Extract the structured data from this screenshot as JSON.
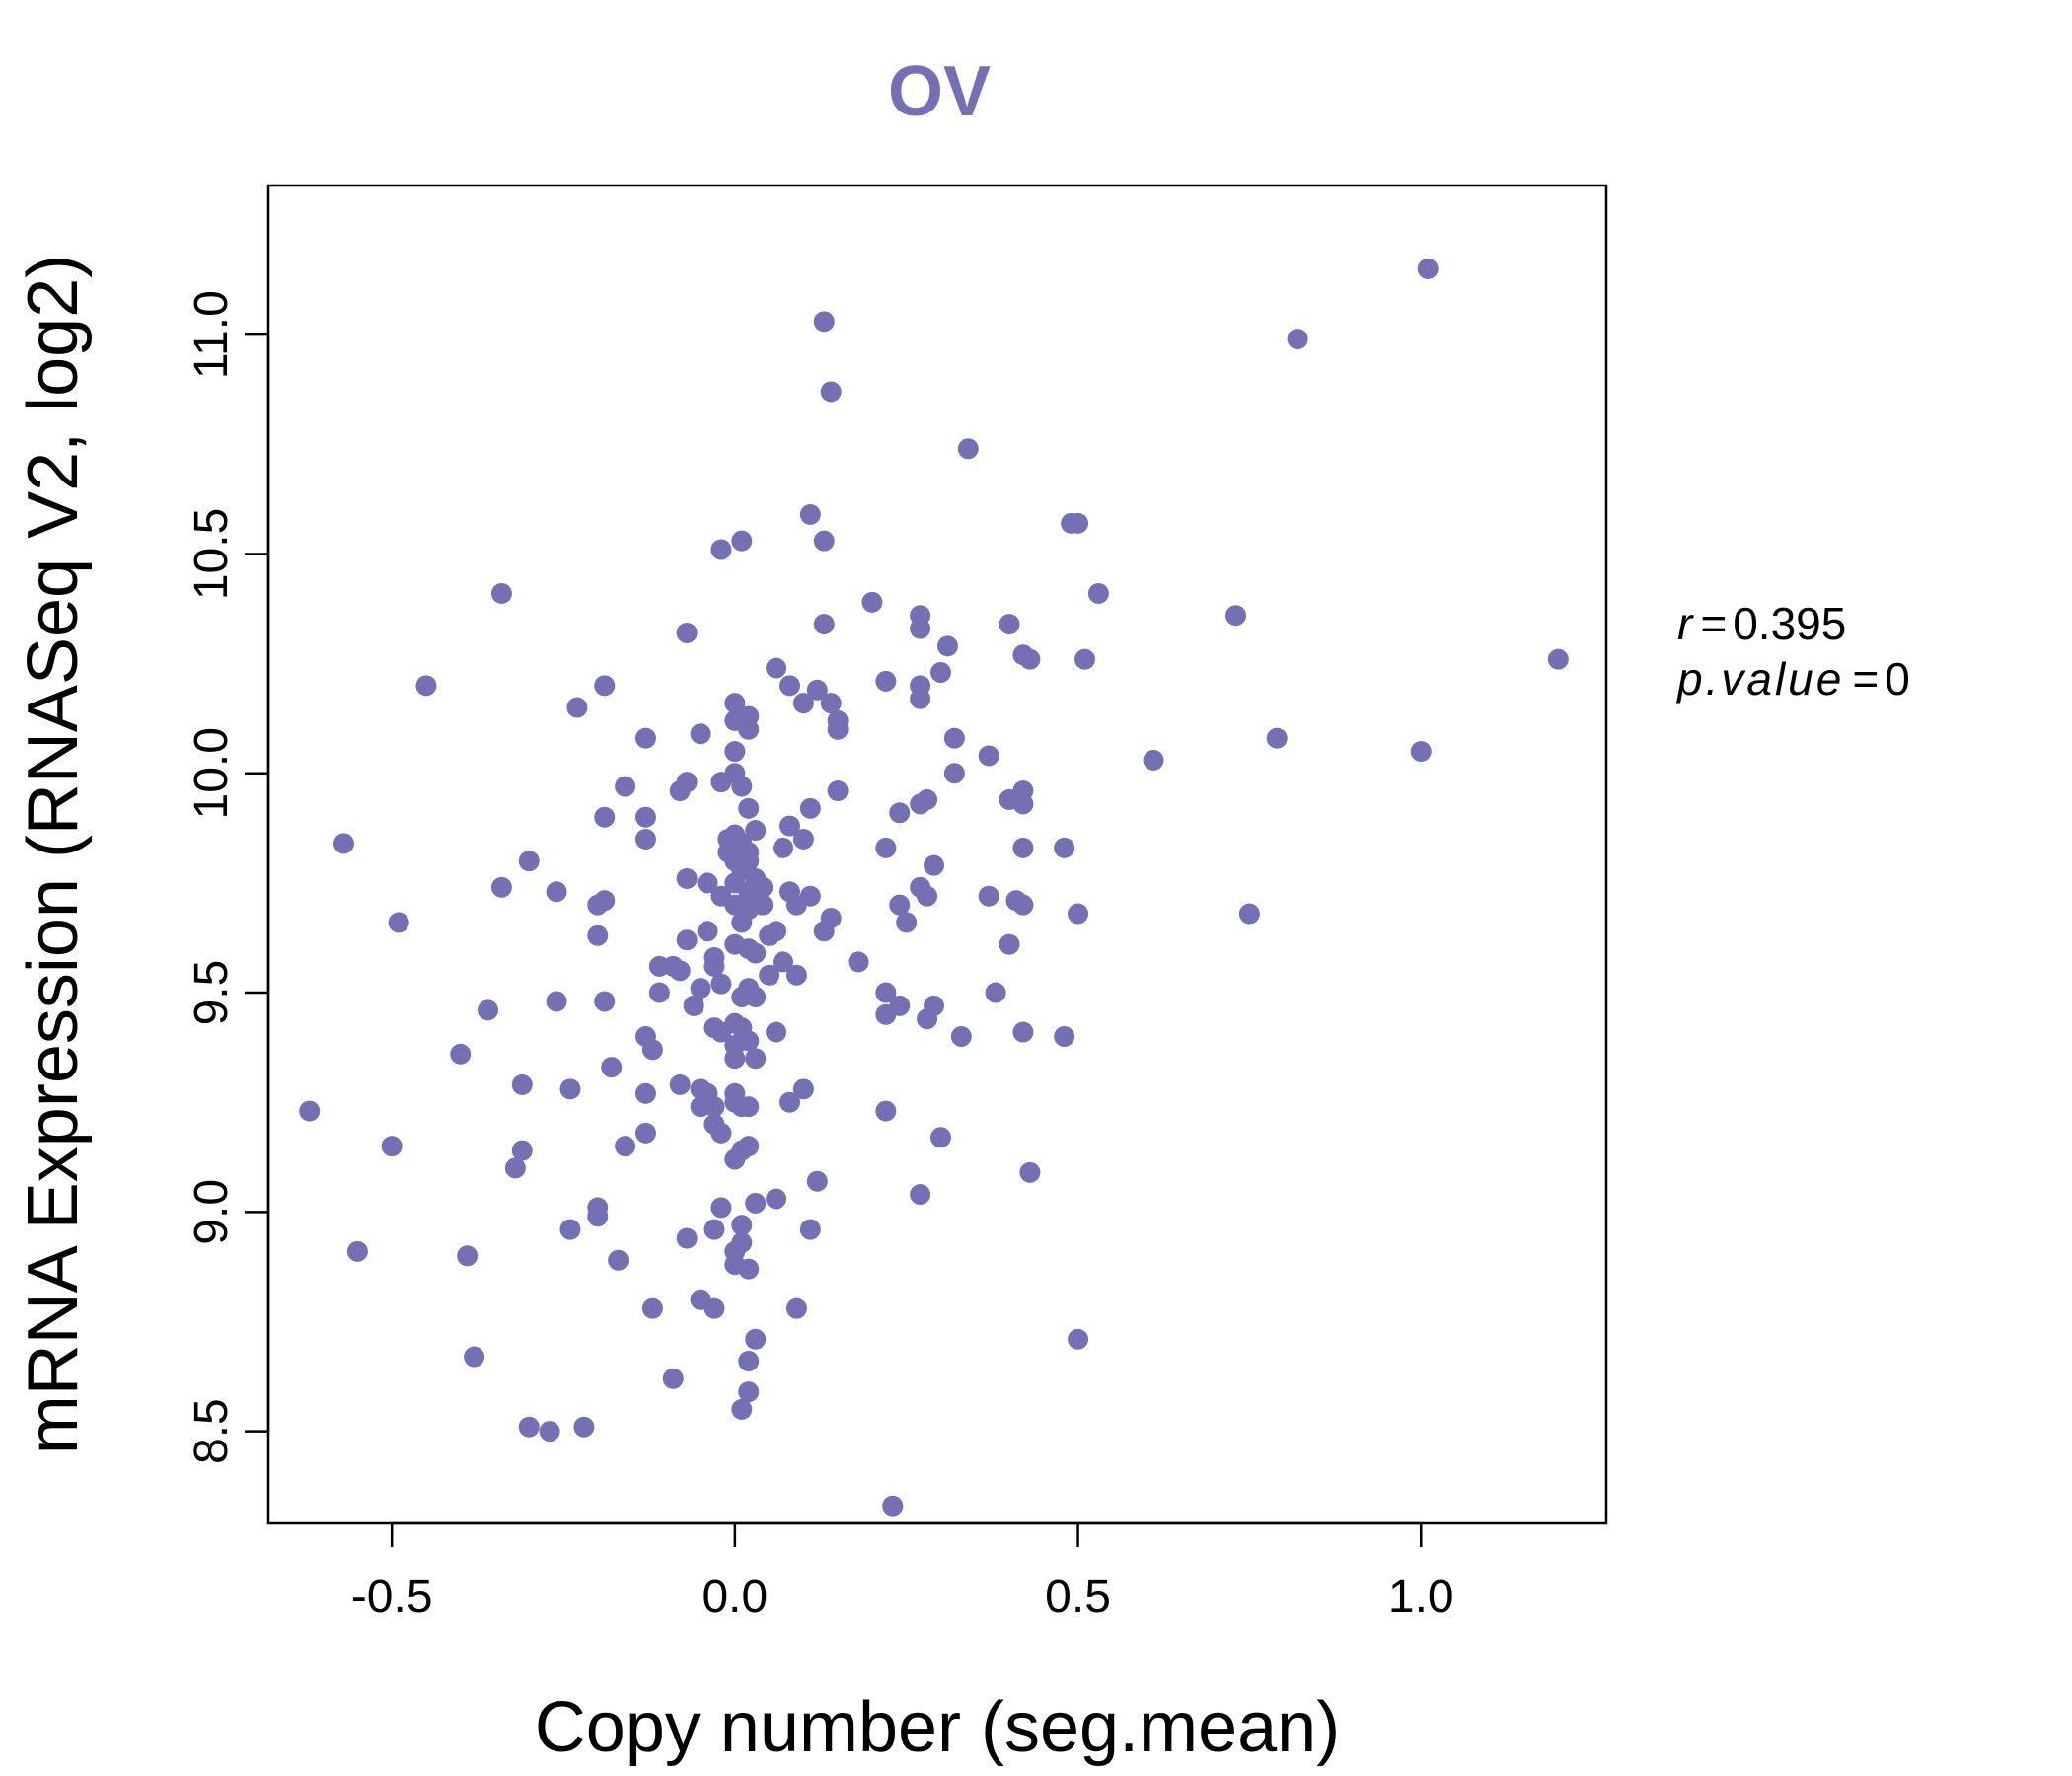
{
  "chart_data": {
    "type": "scatter",
    "title": "OV",
    "xlabel": "Copy number (seg.mean)",
    "ylabel": "mRNA Expression (RNASeq V2, log2)",
    "xlim": [
      -0.68,
      1.27
    ],
    "ylim": [
      8.29,
      11.34
    ],
    "xticks": [
      -0.5,
      0.0,
      0.5,
      1.0
    ],
    "xtick_labels": [
      "-0.5",
      "0.0",
      "0.5",
      "1.0"
    ],
    "yticks": [
      8.5,
      9.0,
      9.5,
      10.0,
      10.5,
      11.0
    ],
    "ytick_labels": [
      "8.5",
      "9.0",
      "9.5",
      "10.0",
      "10.5",
      "11.0"
    ],
    "grid": false,
    "legend": false,
    "point_color": "#7570b3",
    "stats": {
      "r_label": "r",
      "r_value": "0.395",
      "p_label": "p.value",
      "p_value": "0"
    },
    "points": [
      [
        1.01,
        11.15
      ],
      [
        0.82,
        10.99
      ],
      [
        0.13,
        11.03
      ],
      [
        0.14,
        10.87
      ],
      [
        0.34,
        10.74
      ],
      [
        0.11,
        10.59
      ],
      [
        0.13,
        10.53
      ],
      [
        0.01,
        10.53
      ],
      [
        -0.02,
        10.51
      ],
      [
        0.49,
        10.57
      ],
      [
        0.5,
        10.57
      ],
      [
        0.53,
        10.41
      ],
      [
        0.2,
        10.39
      ],
      [
        -0.34,
        10.41
      ],
      [
        0.13,
        10.34
      ],
      [
        0.27,
        10.36
      ],
      [
        0.27,
        10.33
      ],
      [
        0.4,
        10.34
      ],
      [
        0.73,
        10.36
      ],
      [
        -0.07,
        10.32
      ],
      [
        0.31,
        10.29
      ],
      [
        0.42,
        10.27
      ],
      [
        0.43,
        10.26
      ],
      [
        0.51,
        10.26
      ],
      [
        1.2,
        10.26
      ],
      [
        0.06,
        10.24
      ],
      [
        0.3,
        10.23
      ],
      [
        0.08,
        10.2
      ],
      [
        0.12,
        10.19
      ],
      [
        0.22,
        10.21
      ],
      [
        0.27,
        10.2
      ],
      [
        0.27,
        10.17
      ],
      [
        -0.45,
        10.2
      ],
      [
        -0.19,
        10.2
      ],
      [
        -0.23,
        10.15
      ],
      [
        0.1,
        10.16
      ],
      [
        0.14,
        10.16
      ],
      [
        0.0,
        10.16
      ],
      [
        0.02,
        10.13
      ],
      [
        0.0,
        10.12
      ],
      [
        0.15,
        10.12
      ],
      [
        0.15,
        10.1
      ],
      [
        0.02,
        10.1
      ],
      [
        -0.05,
        10.09
      ],
      [
        -0.13,
        10.08
      ],
      [
        0.32,
        10.08
      ],
      [
        0.79,
        10.08
      ],
      [
        1.0,
        10.05
      ],
      [
        0.61,
        10.03
      ],
      [
        0.37,
        10.04
      ],
      [
        0.0,
        10.05
      ],
      [
        0.32,
        10.0
      ],
      [
        0.0,
        10.0
      ],
      [
        -0.07,
        9.98
      ],
      [
        -0.08,
        9.96
      ],
      [
        -0.16,
        9.97
      ],
      [
        0.15,
        9.96
      ],
      [
        -0.02,
        9.98
      ],
      [
        0.01,
        9.97
      ],
      [
        0.42,
        9.96
      ],
      [
        0.4,
        9.94
      ],
      [
        0.42,
        9.93
      ],
      [
        0.28,
        9.94
      ],
      [
        0.27,
        9.93
      ],
      [
        0.24,
        9.91
      ],
      [
        0.11,
        9.92
      ],
      [
        0.02,
        9.92
      ],
      [
        -0.13,
        9.9
      ],
      [
        -0.19,
        9.9
      ],
      [
        0.08,
        9.88
      ],
      [
        0.03,
        9.87
      ],
      [
        0.0,
        9.86
      ],
      [
        -0.01,
        9.85
      ],
      [
        0.01,
        9.84
      ],
      [
        0.1,
        9.85
      ],
      [
        -0.13,
        9.85
      ],
      [
        -0.57,
        9.84
      ],
      [
        0.22,
        9.83
      ],
      [
        0.42,
        9.83
      ],
      [
        0.48,
        9.83
      ],
      [
        0.07,
        9.83
      ],
      [
        0.02,
        9.82
      ],
      [
        -0.01,
        9.82
      ],
      [
        0.0,
        9.8
      ],
      [
        0.02,
        9.8
      ],
      [
        0.29,
        9.79
      ],
      [
        -0.3,
        9.8
      ],
      [
        -0.07,
        9.76
      ],
      [
        0.01,
        9.78
      ],
      [
        0.03,
        9.76
      ],
      [
        0.0,
        9.75
      ],
      [
        -0.04,
        9.75
      ],
      [
        0.27,
        9.74
      ],
      [
        -0.34,
        9.74
      ],
      [
        0.02,
        9.73
      ],
      [
        0.04,
        9.74
      ],
      [
        0.08,
        9.73
      ],
      [
        -0.26,
        9.73
      ],
      [
        0.28,
        9.72
      ],
      [
        0.11,
        9.72
      ],
      [
        0.37,
        9.72
      ],
      [
        0.03,
        9.72
      ],
      [
        -0.02,
        9.72
      ],
      [
        0.24,
        9.7
      ],
      [
        0.41,
        9.71
      ],
      [
        0.42,
        9.7
      ],
      [
        -0.2,
        9.7
      ],
      [
        -0.19,
        9.71
      ],
      [
        0.0,
        9.7
      ],
      [
        0.04,
        9.7
      ],
      [
        0.09,
        9.7
      ],
      [
        0.02,
        9.69
      ],
      [
        0.5,
        9.68
      ],
      [
        0.75,
        9.68
      ],
      [
        0.14,
        9.67
      ],
      [
        0.25,
        9.66
      ],
      [
        0.01,
        9.66
      ],
      [
        -0.49,
        9.66
      ],
      [
        0.06,
        9.64
      ],
      [
        -0.04,
        9.64
      ],
      [
        0.13,
        9.64
      ],
      [
        -0.2,
        9.63
      ],
      [
        0.05,
        9.63
      ],
      [
        -0.07,
        9.62
      ],
      [
        0.0,
        9.61
      ],
      [
        0.4,
        9.61
      ],
      [
        0.02,
        9.6
      ],
      [
        0.03,
        9.59
      ],
      [
        -0.03,
        9.58
      ],
      [
        0.07,
        9.57
      ],
      [
        0.18,
        9.57
      ],
      [
        -0.03,
        9.56
      ],
      [
        -0.11,
        9.56
      ],
      [
        -0.09,
        9.56
      ],
      [
        -0.08,
        9.55
      ],
      [
        0.09,
        9.54
      ],
      [
        0.05,
        9.54
      ],
      [
        -0.02,
        9.52
      ],
      [
        0.02,
        9.51
      ],
      [
        -0.05,
        9.51
      ],
      [
        -0.11,
        9.5
      ],
      [
        0.38,
        9.5
      ],
      [
        0.22,
        9.5
      ],
      [
        0.03,
        9.49
      ],
      [
        0.01,
        9.49
      ],
      [
        -0.19,
        9.48
      ],
      [
        -0.26,
        9.48
      ],
      [
        0.24,
        9.47
      ],
      [
        0.29,
        9.47
      ],
      [
        -0.06,
        9.47
      ],
      [
        -0.36,
        9.46
      ],
      [
        0.22,
        9.45
      ],
      [
        0.28,
        9.44
      ],
      [
        0.0,
        9.43
      ],
      [
        -0.03,
        9.42
      ],
      [
        0.01,
        9.42
      ],
      [
        -0.02,
        9.41
      ],
      [
        0.06,
        9.41
      ],
      [
        0.33,
        9.4
      ],
      [
        0.42,
        9.41
      ],
      [
        0.48,
        9.4
      ],
      [
        -0.13,
        9.4
      ],
      [
        0.02,
        9.39
      ],
      [
        0.0,
        9.38
      ],
      [
        -0.12,
        9.37
      ],
      [
        -0.4,
        9.36
      ],
      [
        0.03,
        9.35
      ],
      [
        0.0,
        9.35
      ],
      [
        -0.18,
        9.33
      ],
      [
        -0.31,
        9.29
      ],
      [
        -0.08,
        9.29
      ],
      [
        -0.05,
        9.28
      ],
      [
        0.1,
        9.28
      ],
      [
        -0.24,
        9.28
      ],
      [
        0.0,
        9.27
      ],
      [
        -0.04,
        9.27
      ],
      [
        -0.13,
        9.27
      ],
      [
        0.08,
        9.25
      ],
      [
        0.0,
        9.25
      ],
      [
        0.02,
        9.24
      ],
      [
        -0.03,
        9.24
      ],
      [
        -0.05,
        9.24
      ],
      [
        0.01,
        9.24
      ],
      [
        -0.62,
        9.23
      ],
      [
        0.22,
        9.23
      ],
      [
        -0.03,
        9.2
      ],
      [
        -0.02,
        9.18
      ],
      [
        0.3,
        9.17
      ],
      [
        -0.13,
        9.18
      ],
      [
        0.02,
        9.15
      ],
      [
        0.01,
        9.14
      ],
      [
        -0.16,
        9.15
      ],
      [
        -0.31,
        9.14
      ],
      [
        -0.5,
        9.15
      ],
      [
        0.0,
        9.12
      ],
      [
        -0.32,
        9.1
      ],
      [
        0.43,
        9.09
      ],
      [
        0.12,
        9.07
      ],
      [
        0.27,
        9.04
      ],
      [
        0.06,
        9.03
      ],
      [
        0.03,
        9.02
      ],
      [
        -0.2,
        9.01
      ],
      [
        -0.02,
        9.01
      ],
      [
        -0.2,
        8.99
      ],
      [
        0.01,
        8.97
      ],
      [
        0.11,
        8.96
      ],
      [
        -0.24,
        8.96
      ],
      [
        -0.03,
        8.96
      ],
      [
        -0.07,
        8.94
      ],
      [
        0.01,
        8.93
      ],
      [
        0.0,
        8.91
      ],
      [
        -0.55,
        8.91
      ],
      [
        -0.39,
        8.9
      ],
      [
        -0.17,
        8.89
      ],
      [
        0.0,
        8.88
      ],
      [
        0.02,
        8.87
      ],
      [
        -0.05,
        8.8
      ],
      [
        -0.12,
        8.78
      ],
      [
        0.09,
        8.78
      ],
      [
        -0.03,
        8.78
      ],
      [
        0.5,
        8.71
      ],
      [
        0.03,
        8.71
      ],
      [
        -0.38,
        8.67
      ],
      [
        0.02,
        8.66
      ],
      [
        -0.09,
        8.62
      ],
      [
        0.02,
        8.59
      ],
      [
        0.01,
        8.55
      ],
      [
        -0.3,
        8.51
      ],
      [
        -0.27,
        8.5
      ],
      [
        -0.22,
        8.51
      ],
      [
        0.23,
        8.33
      ]
    ]
  }
}
